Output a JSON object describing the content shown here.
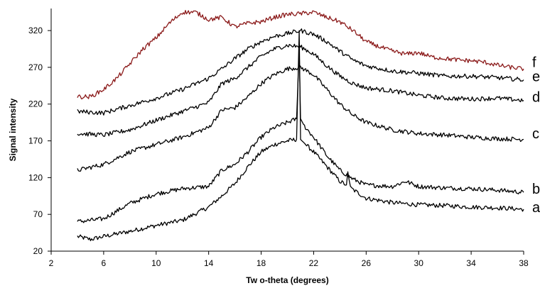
{
  "chart_data": {
    "type": "line",
    "xlabel": "Tw o-theta (degrees)",
    "ylabel": "Signal intensity",
    "xlim": [
      2,
      38
    ],
    "ylim": [
      20,
      350
    ],
    "xticks": [
      2,
      6,
      10,
      14,
      18,
      22,
      26,
      30,
      34,
      38
    ],
    "yticks": [
      20,
      70,
      120,
      170,
      220,
      270,
      320
    ],
    "grid": false,
    "legend": "none",
    "series": [
      {
        "name": "a",
        "color": "#000000",
        "points": [
          [
            4,
            40
          ],
          [
            5,
            36
          ],
          [
            6,
            40
          ],
          [
            8,
            47
          ],
          [
            10,
            55
          ],
          [
            12,
            62
          ],
          [
            14,
            80
          ],
          [
            15,
            95
          ],
          [
            16,
            112
          ],
          [
            17,
            135
          ],
          [
            18,
            155
          ],
          [
            19,
            165
          ],
          [
            20,
            170
          ],
          [
            20.7,
            172
          ],
          [
            20.9,
            320
          ],
          [
            21.0,
            172
          ],
          [
            21.4,
            165
          ],
          [
            22,
            155
          ],
          [
            23,
            135
          ],
          [
            24,
            115
          ],
          [
            24.5,
            110
          ],
          [
            24.6,
            128
          ],
          [
            24.8,
            106
          ],
          [
            26,
            92
          ],
          [
            28,
            86
          ],
          [
            30,
            83
          ],
          [
            32,
            82
          ],
          [
            34,
            80
          ],
          [
            36,
            79
          ],
          [
            38,
            77
          ]
        ],
        "label_value": 80
      },
      {
        "name": "b",
        "color": "#000000",
        "points": [
          [
            4,
            60
          ],
          [
            6,
            64
          ],
          [
            8,
            85
          ],
          [
            10,
            98
          ],
          [
            12,
            105
          ],
          [
            14,
            108
          ],
          [
            15,
            130
          ],
          [
            16,
            138
          ],
          [
            17,
            155
          ],
          [
            18,
            175
          ],
          [
            19,
            188
          ],
          [
            20,
            195
          ],
          [
            20.7,
            200
          ],
          [
            20.9,
            295
          ],
          [
            21.0,
            200
          ],
          [
            21.3,
            190
          ],
          [
            22,
            175
          ],
          [
            23,
            150
          ],
          [
            24,
            130
          ],
          [
            25,
            118
          ],
          [
            26,
            110
          ],
          [
            28,
            108
          ],
          [
            29,
            115
          ],
          [
            30,
            108
          ],
          [
            32,
            106
          ],
          [
            34,
            105
          ],
          [
            36,
            103
          ],
          [
            38,
            100
          ]
        ],
        "label_value": 105
      },
      {
        "name": "c",
        "color": "#000000",
        "points": [
          [
            4,
            130
          ],
          [
            6,
            138
          ],
          [
            8,
            155
          ],
          [
            10,
            165
          ],
          [
            12,
            175
          ],
          [
            14,
            188
          ],
          [
            15,
            212
          ],
          [
            16,
            215
          ],
          [
            17,
            230
          ],
          [
            18,
            248
          ],
          [
            19,
            260
          ],
          [
            20,
            268
          ],
          [
            21,
            270
          ],
          [
            22,
            260
          ],
          [
            23,
            240
          ],
          [
            24,
            220
          ],
          [
            25,
            205
          ],
          [
            26,
            195
          ],
          [
            28,
            185
          ],
          [
            30,
            180
          ],
          [
            32,
            178
          ],
          [
            34,
            175
          ],
          [
            36,
            173
          ],
          [
            38,
            172
          ]
        ],
        "label_value": 180
      },
      {
        "name": "d",
        "color": "#000000",
        "points": [
          [
            4,
            180
          ],
          [
            6,
            178
          ],
          [
            8,
            185
          ],
          [
            10,
            198
          ],
          [
            12,
            210
          ],
          [
            14,
            222
          ],
          [
            15,
            248
          ],
          [
            16,
            255
          ],
          [
            17,
            270
          ],
          [
            18,
            285
          ],
          [
            19,
            295
          ],
          [
            20,
            300
          ],
          [
            21,
            298
          ],
          [
            22,
            288
          ],
          [
            23,
            272
          ],
          [
            24,
            258
          ],
          [
            25,
            248
          ],
          [
            26,
            242
          ],
          [
            28,
            238
          ],
          [
            30,
            232
          ],
          [
            32,
            228
          ],
          [
            34,
            227
          ],
          [
            36,
            228
          ],
          [
            38,
            225
          ]
        ],
        "label_value": 230
      },
      {
        "name": "e",
        "color": "#000000",
        "points": [
          [
            4,
            210
          ],
          [
            6,
            208
          ],
          [
            8,
            218
          ],
          [
            10,
            228
          ],
          [
            12,
            240
          ],
          [
            14,
            255
          ],
          [
            15,
            268
          ],
          [
            16,
            282
          ],
          [
            17,
            295
          ],
          [
            18,
            305
          ],
          [
            19,
            312
          ],
          [
            20,
            316
          ],
          [
            21,
            320
          ],
          [
            22,
            315
          ],
          [
            23,
            305
          ],
          [
            24,
            292
          ],
          [
            25,
            280
          ],
          [
            26,
            272
          ],
          [
            28,
            265
          ],
          [
            30,
            262
          ],
          [
            32,
            258
          ],
          [
            34,
            258
          ],
          [
            36,
            256
          ],
          [
            38,
            253
          ]
        ],
        "label_value": 258
      },
      {
        "name": "f",
        "color": "#8b1a1a",
        "points": [
          [
            4,
            230
          ],
          [
            5,
            230
          ],
          [
            6,
            240
          ],
          [
            7,
            255
          ],
          [
            8,
            275
          ],
          [
            9,
            295
          ],
          [
            10,
            310
          ],
          [
            11,
            330
          ],
          [
            12,
            345
          ],
          [
            13,
            345
          ],
          [
            14,
            335
          ],
          [
            15,
            338
          ],
          [
            16,
            325
          ],
          [
            17,
            330
          ],
          [
            18,
            332
          ],
          [
            19,
            338
          ],
          [
            20,
            342
          ],
          [
            21,
            343
          ],
          [
            22,
            345
          ],
          [
            23,
            338
          ],
          [
            24,
            332
          ],
          [
            25,
            320
          ],
          [
            26,
            305
          ],
          [
            27,
            298
          ],
          [
            28,
            292
          ],
          [
            29,
            288
          ],
          [
            30,
            290
          ],
          [
            31,
            284
          ],
          [
            32,
            282
          ],
          [
            33,
            280
          ],
          [
            34,
            279
          ],
          [
            35,
            277
          ],
          [
            36,
            273
          ],
          [
            37,
            270
          ],
          [
            38,
            268
          ]
        ],
        "label_value": 277
      }
    ]
  }
}
